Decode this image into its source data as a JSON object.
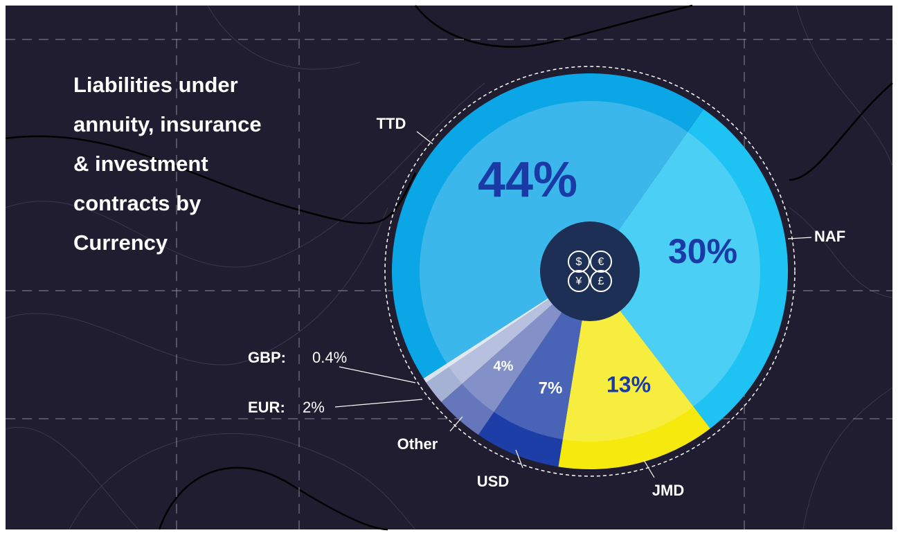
{
  "chart_data": {
    "type": "pie",
    "title": "Liabilities under annuity, insurance & investment contracts by Currency",
    "categories": [
      "NAF",
      "JMD",
      "USD",
      "Other",
      "EUR:",
      "GBP:",
      "TTD"
    ],
    "values": [
      30,
      13,
      7,
      4,
      2,
      0.4,
      44
    ],
    "value_labels": [
      "30%",
      "13%",
      "7%",
      "4%",
      "2%",
      "0.4%",
      "44%"
    ],
    "colors": [
      "#1ec3f3",
      "#f6e90e",
      "#1c3ea6",
      "#6576bb",
      "#a6b1d6",
      "#d9e4ef",
      "#0ba6e6"
    ],
    "icon_labels": [
      "$",
      "€",
      "¥",
      "£"
    ]
  }
}
